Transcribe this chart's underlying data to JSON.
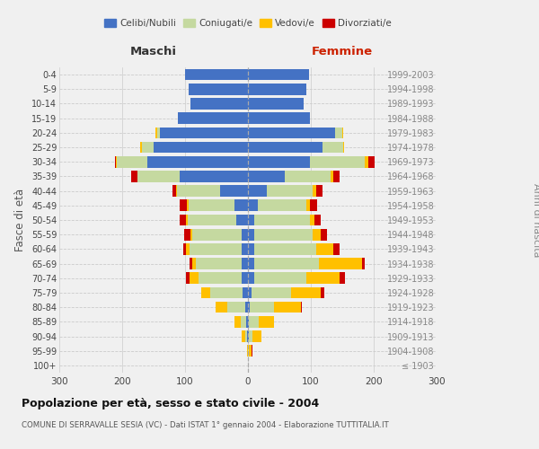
{
  "age_groups": [
    "100+",
    "95-99",
    "90-94",
    "85-89",
    "80-84",
    "75-79",
    "70-74",
    "65-69",
    "60-64",
    "55-59",
    "50-54",
    "45-49",
    "40-44",
    "35-39",
    "30-34",
    "25-29",
    "20-24",
    "15-19",
    "10-14",
    "5-9",
    "0-4"
  ],
  "birth_years": [
    "≤ 1903",
    "1904-1908",
    "1909-1913",
    "1914-1918",
    "1919-1923",
    "1924-1928",
    "1929-1933",
    "1934-1938",
    "1939-1943",
    "1944-1948",
    "1949-1953",
    "1954-1958",
    "1959-1963",
    "1964-1968",
    "1969-1973",
    "1974-1978",
    "1979-1983",
    "1984-1988",
    "1989-1993",
    "1994-1998",
    "1999-2003"
  ],
  "males": {
    "celibi": [
      0,
      0,
      2,
      3,
      5,
      8,
      10,
      10,
      10,
      10,
      18,
      22,
      45,
      108,
      160,
      150,
      140,
      112,
      92,
      95,
      100
    ],
    "coniugati": [
      0,
      0,
      3,
      8,
      28,
      52,
      68,
      73,
      83,
      78,
      78,
      72,
      68,
      68,
      48,
      18,
      5,
      0,
      0,
      0,
      0
    ],
    "vedovi": [
      0,
      2,
      5,
      10,
      18,
      15,
      15,
      5,
      5,
      3,
      3,
      3,
      2,
      0,
      2,
      3,
      2,
      0,
      0,
      0,
      0
    ],
    "divorziati": [
      0,
      0,
      0,
      0,
      0,
      0,
      5,
      5,
      5,
      10,
      10,
      12,
      5,
      10,
      2,
      0,
      0,
      0,
      0,
      0,
      0
    ]
  },
  "females": {
    "nubili": [
      0,
      0,
      2,
      2,
      3,
      5,
      10,
      10,
      10,
      10,
      10,
      15,
      30,
      58,
      98,
      118,
      138,
      98,
      88,
      93,
      97
    ],
    "coniugate": [
      0,
      2,
      5,
      15,
      38,
      63,
      83,
      103,
      98,
      93,
      88,
      78,
      73,
      73,
      88,
      33,
      12,
      0,
      0,
      0,
      0
    ],
    "vedove": [
      0,
      3,
      15,
      25,
      43,
      48,
      53,
      68,
      28,
      13,
      8,
      5,
      5,
      5,
      5,
      2,
      2,
      0,
      0,
      0,
      0
    ],
    "divorziate": [
      0,
      2,
      0,
      0,
      2,
      5,
      8,
      5,
      10,
      10,
      10,
      12,
      10,
      10,
      10,
      0,
      0,
      0,
      0,
      0,
      0
    ]
  },
  "colors": {
    "celibi": "#4472c4",
    "coniugati": "#c5d9a0",
    "vedovi": "#ffc000",
    "divorziati": "#cc0000"
  },
  "title": "Popolazione per età, sesso e stato civile - 2004",
  "subtitle": "COMUNE DI SERRAVALLE SESIA (VC) - Dati ISTAT 1° gennaio 2004 - Elaborazione TUTTITALIA.IT",
  "ylabel": "Fasce di età",
  "ylabel_right": "Anni di nascita",
  "label_left": "Maschi",
  "label_right": "Femmine",
  "xlim": 300,
  "bg_color": "#f0f0f0",
  "grid_color": "#cccccc"
}
